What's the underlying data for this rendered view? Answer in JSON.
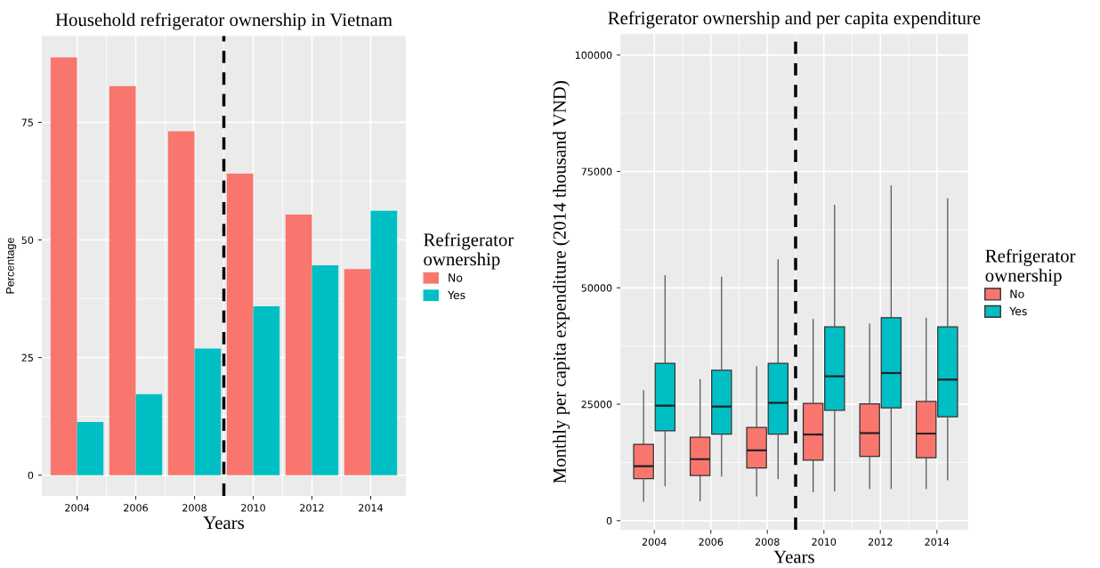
{
  "chart_data": [
    {
      "type": "bar",
      "title": "Household refrigerator ownership in Vietnam",
      "xlabel": "Years",
      "ylabel": "Percentage",
      "legend_title": "Refrigerator ownership",
      "x": [
        2004,
        2006,
        2008,
        2010,
        2012,
        2014
      ],
      "series": [
        {
          "name": "No",
          "color": "#f8766d",
          "values": [
            88.8,
            82.7,
            73.1,
            64.1,
            55.4,
            43.8
          ]
        },
        {
          "name": "Yes",
          "color": "#00bfc4",
          "values": [
            11.3,
            17.2,
            26.9,
            35.9,
            44.6,
            56.2
          ]
        }
      ],
      "xlim": [
        2002.8,
        2015.2
      ],
      "xticks": [
        2004,
        2006,
        2008,
        2010,
        2012,
        2014
      ],
      "ylim": [
        -4.4,
        93.4
      ],
      "yticks": [
        0,
        25,
        50,
        75
      ],
      "ref_lines": [
        {
          "axis": "x",
          "value": 2009,
          "color": "#000000",
          "line_style": "dashed"
        }
      ],
      "grid": true,
      "legend": "right"
    },
    {
      "type": "box",
      "title": "Refrigerator ownership and per capita expenditure",
      "xlabel": "Years",
      "ylabel": "Monthly per capita expenditure (2014 thousand VND)",
      "legend_title": "Refrigerator ownership",
      "x": [
        2004,
        2006,
        2008,
        2010,
        2012,
        2014
      ],
      "series": [
        {
          "name": "No",
          "color": "#f8766d",
          "boxes": [
            {
              "low": 4200,
              "q1": 9000,
              "median": 11700,
              "q3": 16400,
              "high": 27900
            },
            {
              "low": 4300,
              "q1": 9700,
              "median": 13200,
              "q3": 17900,
              "high": 30300
            },
            {
              "low": 5300,
              "q1": 11300,
              "median": 15100,
              "q3": 20000,
              "high": 33000
            },
            {
              "low": 6200,
              "q1": 13000,
              "median": 18500,
              "q3": 25200,
              "high": 43200
            },
            {
              "low": 6900,
              "q1": 13800,
              "median": 18800,
              "q3": 25100,
              "high": 42200
            },
            {
              "low": 6900,
              "q1": 13500,
              "median": 18700,
              "q3": 25600,
              "high": 43500
            }
          ]
        },
        {
          "name": "Yes",
          "color": "#00bfc4",
          "boxes": [
            {
              "low": 7500,
              "q1": 19300,
              "median": 24700,
              "q3": 33800,
              "high": 52600
            },
            {
              "low": 9600,
              "q1": 18600,
              "median": 24500,
              "q3": 32300,
              "high": 52300
            },
            {
              "low": 9000,
              "q1": 18600,
              "median": 25300,
              "q3": 33800,
              "high": 56000
            },
            {
              "low": 6400,
              "q1": 23700,
              "median": 31000,
              "q3": 41600,
              "high": 67700
            },
            {
              "low": 6900,
              "q1": 24200,
              "median": 31700,
              "q3": 43600,
              "high": 71900
            },
            {
              "low": 8800,
              "q1": 22300,
              "median": 30300,
              "q3": 41600,
              "high": 69100
            }
          ]
        }
      ],
      "xlim": [
        2002.8,
        2015.1
      ],
      "xticks": [
        2004,
        2006,
        2008,
        2010,
        2012,
        2014
      ],
      "ylim": [
        -2000,
        104500
      ],
      "yticks": [
        0,
        25000,
        50000,
        75000,
        100000
      ],
      "ref_lines": [
        {
          "axis": "x",
          "value": 2009,
          "color": "#000000",
          "line_style": "dashed"
        }
      ],
      "grid": true,
      "legend": "right"
    }
  ]
}
